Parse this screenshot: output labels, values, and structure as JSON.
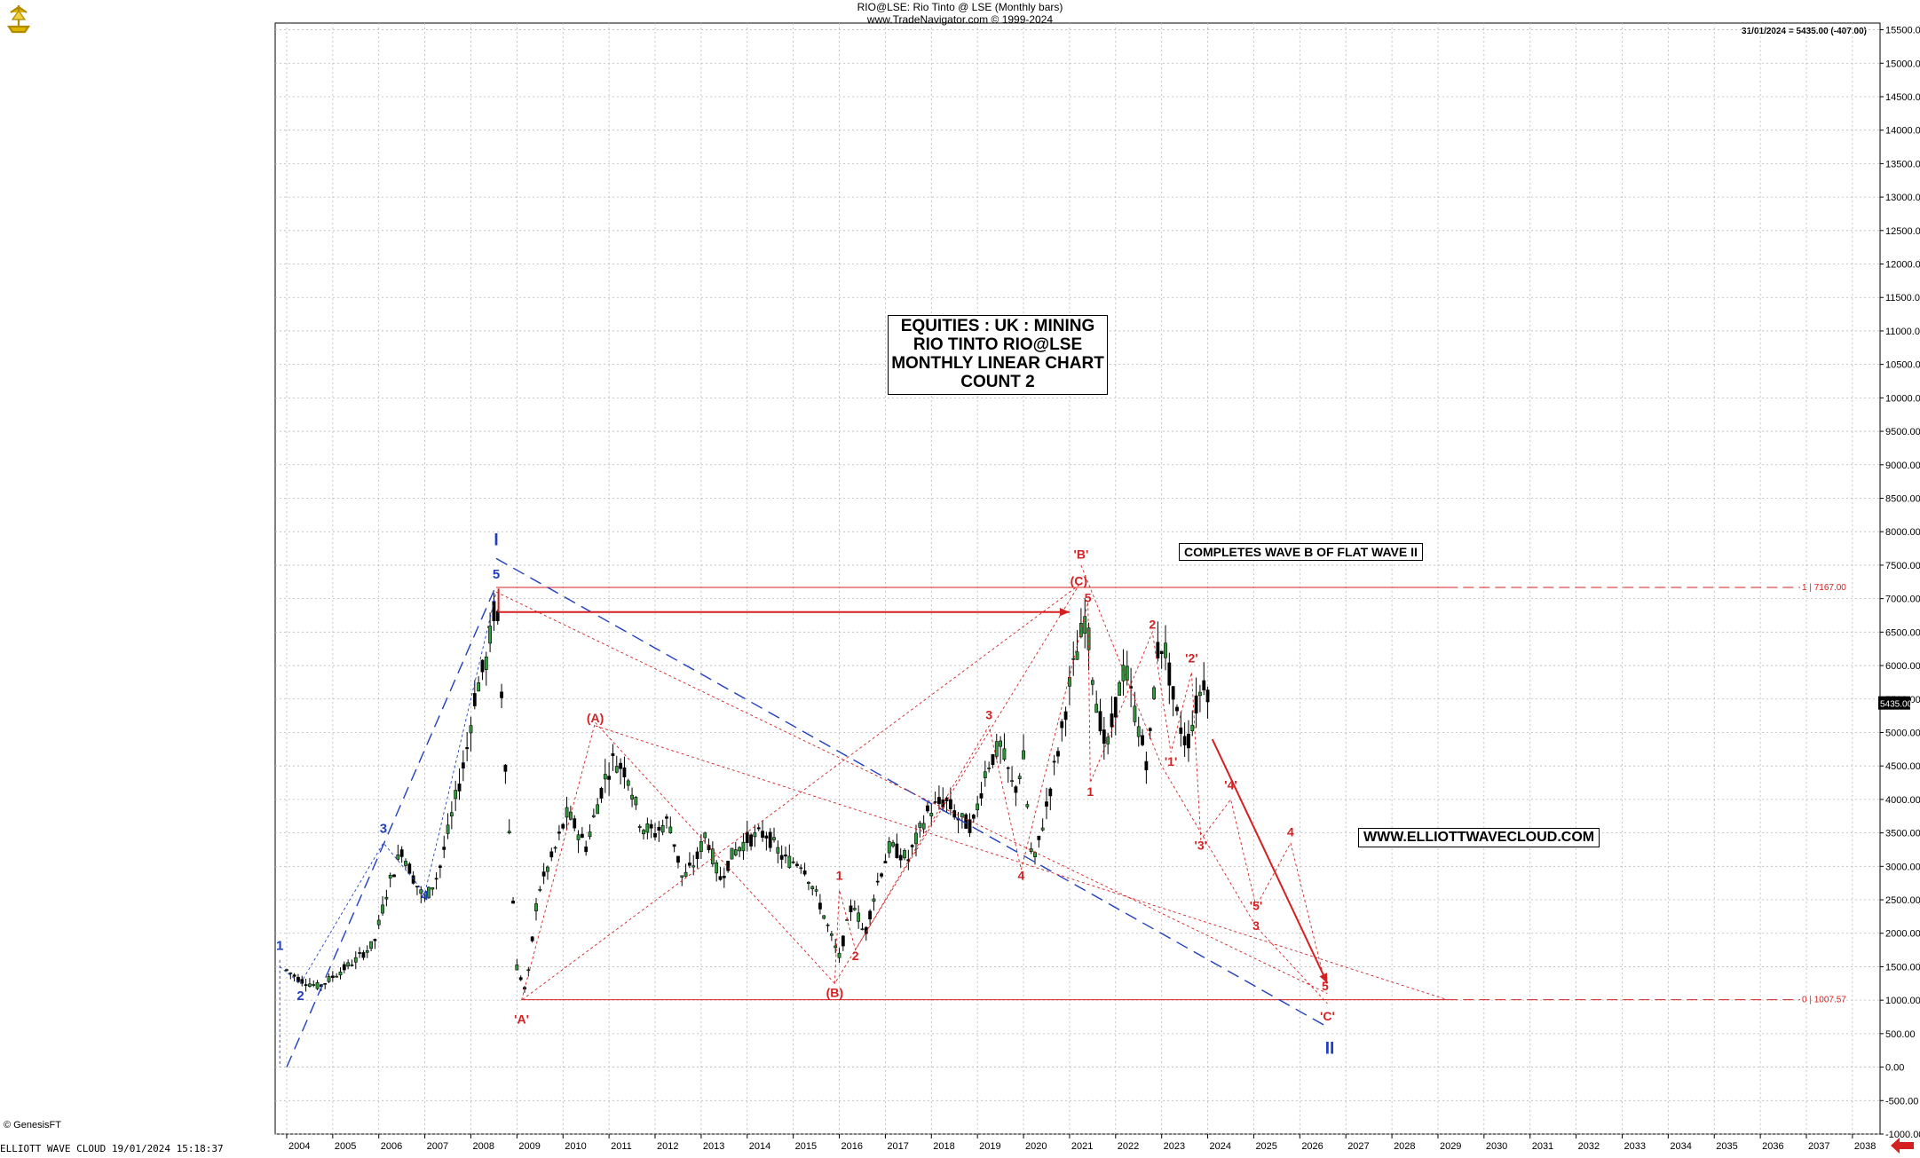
{
  "header": {
    "line1": "RIO@LSE:  Rio Tinto @ LSE  (Monthly bars)",
    "line2": "www.TradeNavigator.com © 1999-2024"
  },
  "corner_info": "31/01/2024 = 5435.00 (-407.00)",
  "copyright": "© GenesisFT",
  "footer": "ELLIOTT WAVE CLOUD   19/01/2024 15:18:37",
  "title_box": [
    "EQUITIES : UK : MINING",
    "RIO TINTO RIO@LSE",
    "MONTHLY LINEAR CHART",
    "COUNT 2"
  ],
  "note_box": "COMPLETES WAVE B OF FLAT WAVE II",
  "website_box": "WWW.ELLIOTTWAVECLOUD.COM",
  "price_tag": "5435.00",
  "colors": {
    "blue": "#1f3fbf",
    "red": "#d42020",
    "grid": "#b8b8b8",
    "bars": "#000000"
  },
  "icons": {
    "logo": "ship-logo-icon",
    "back": "red-back-arrow-icon"
  },
  "chart_data": {
    "type": "candlestick",
    "title": "RIO@LSE:  Rio Tinto @ LSE  (Monthly bars)",
    "x_ticks": [
      "2004",
      "2005",
      "2006",
      "2007",
      "2008",
      "2009",
      "2010",
      "2011",
      "2012",
      "2013",
      "2014",
      "2015",
      "2016",
      "2017",
      "2018",
      "2019",
      "2020",
      "2021",
      "2022",
      "2023",
      "2024",
      "2025",
      "2026",
      "2027",
      "2028",
      "2029",
      "2030",
      "2031",
      "2032",
      "2033",
      "2034",
      "2035",
      "2036",
      "2037",
      "2038"
    ],
    "xlim": [
      2003.75,
      2038.6
    ],
    "ylim": [
      -1000,
      15600
    ],
    "y_ticks": [
      -1000,
      -500,
      0,
      500,
      1000,
      1500,
      2000,
      2500,
      3000,
      3500,
      4000,
      4500,
      5000,
      5500,
      6000,
      6500,
      7000,
      7500,
      8000,
      8500,
      9000,
      9500,
      10000,
      10500,
      11000,
      11500,
      12000,
      12500,
      13000,
      13500,
      14000,
      14500,
      15000,
      15500
    ],
    "y_tick_format": "0.00",
    "grid": true,
    "price_path": [
      [
        2004.0,
        1450
      ],
      [
        2004.3,
        1300
      ],
      [
        2004.7,
        1200
      ],
      [
        2005.0,
        1350
      ],
      [
        2005.5,
        1600
      ],
      [
        2005.9,
        1850
      ],
      [
        2006.2,
        2700
      ],
      [
        2006.5,
        3250
      ],
      [
        2006.8,
        2750
      ],
      [
        2007.0,
        2500
      ],
      [
        2007.3,
        2900
      ],
      [
        2007.6,
        3800
      ],
      [
        2007.9,
        4700
      ],
      [
        2008.1,
        5600
      ],
      [
        2008.35,
        6100
      ],
      [
        2008.55,
        7050
      ],
      [
        2008.7,
        5200
      ],
      [
        2008.85,
        3300
      ],
      [
        2009.0,
        1500
      ],
      [
        2009.2,
        1100
      ],
      [
        2009.45,
        2600
      ],
      [
        2009.8,
        3200
      ],
      [
        2010.1,
        3800
      ],
      [
        2010.5,
        3300
      ],
      [
        2010.9,
        4300
      ],
      [
        2011.1,
        4600
      ],
      [
        2011.4,
        4400
      ],
      [
        2011.7,
        3600
      ],
      [
        2012.0,
        3500
      ],
      [
        2012.3,
        3700
      ],
      [
        2012.6,
        2800
      ],
      [
        2012.9,
        3100
      ],
      [
        2013.1,
        3500
      ],
      [
        2013.4,
        2800
      ],
      [
        2013.7,
        3200
      ],
      [
        2014.0,
        3400
      ],
      [
        2014.4,
        3500
      ],
      [
        2014.8,
        3100
      ],
      [
        2015.2,
        3050
      ],
      [
        2015.6,
        2400
      ],
      [
        2015.9,
        1800
      ],
      [
        2016.0,
        1650
      ],
      [
        2016.3,
        2500
      ],
      [
        2016.55,
        1950
      ],
      [
        2016.8,
        2700
      ],
      [
        2017.1,
        3300
      ],
      [
        2017.5,
        3100
      ],
      [
        2017.9,
        3800
      ],
      [
        2018.3,
        4000
      ],
      [
        2018.6,
        3700
      ],
      [
        2018.9,
        3600
      ],
      [
        2019.2,
        4500
      ],
      [
        2019.5,
        4800
      ],
      [
        2019.8,
        4100
      ],
      [
        2020.0,
        4600
      ],
      [
        2020.2,
        2950
      ],
      [
        2020.5,
        3900
      ],
      [
        2020.8,
        4900
      ],
      [
        2021.0,
        5700
      ],
      [
        2021.2,
        6300
      ],
      [
        2021.35,
        6750
      ],
      [
        2021.55,
        5600
      ],
      [
        2021.8,
        4700
      ],
      [
        2022.0,
        5400
      ],
      [
        2022.2,
        6000
      ],
      [
        2022.45,
        5200
      ],
      [
        2022.7,
        4500
      ],
      [
        2022.9,
        6200
      ],
      [
        2023.05,
        6350
      ],
      [
        2023.3,
        5300
      ],
      [
        2023.55,
        4800
      ],
      [
        2023.75,
        5400
      ],
      [
        2023.95,
        5850
      ],
      [
        2024.05,
        5435
      ]
    ],
    "annotations_blue": [
      {
        "text": "I",
        "x": 2008.55,
        "y": 7800
      },
      {
        "text": "5",
        "x": 2008.55,
        "y": 7300
      },
      {
        "text": "1",
        "x": 2003.85,
        "y": 1750
      },
      {
        "text": "2",
        "x": 2004.3,
        "y": 1000
      },
      {
        "text": "3",
        "x": 2006.1,
        "y": 3500
      },
      {
        "text": "4",
        "x": 2007.0,
        "y": 2500
      },
      {
        "text": "II",
        "x": 2026.65,
        "y": 200
      }
    ],
    "annotations_red": [
      {
        "text": "'B'",
        "x": 2021.25,
        "y": 7600
      },
      {
        "text": "(C)",
        "x": 2021.2,
        "y": 7200
      },
      {
        "text": "5",
        "x": 2021.4,
        "y": 6950
      },
      {
        "text": "(A)",
        "x": 2010.7,
        "y": 5150
      },
      {
        "text": "(B)",
        "x": 2015.9,
        "y": 1050
      },
      {
        "text": "'A'",
        "x": 2009.1,
        "y": 650
      },
      {
        "text": "1",
        "x": 2016.0,
        "y": 2800
      },
      {
        "text": "2",
        "x": 2016.35,
        "y": 1600
      },
      {
        "text": "3",
        "x": 2019.25,
        "y": 5200
      },
      {
        "text": "4",
        "x": 2019.95,
        "y": 2800
      },
      {
        "text": "1",
        "x": 2021.45,
        "y": 4050
      },
      {
        "text": "2",
        "x": 2022.8,
        "y": 6550
      },
      {
        "text": "'2'",
        "x": 2023.65,
        "y": 6050
      },
      {
        "text": "'1'",
        "x": 2023.2,
        "y": 4500
      },
      {
        "text": "'3'",
        "x": 2023.85,
        "y": 3250
      },
      {
        "text": "'4'",
        "x": 2024.5,
        "y": 4150
      },
      {
        "text": "'5'",
        "x": 2025.05,
        "y": 2350
      },
      {
        "text": "3",
        "x": 2025.05,
        "y": 2050
      },
      {
        "text": "4",
        "x": 2025.8,
        "y": 3450
      },
      {
        "text": "5",
        "x": 2026.55,
        "y": 1150
      },
      {
        "text": "'C'",
        "x": 2026.6,
        "y": 700
      }
    ],
    "level_lines": [
      {
        "label": "1 | 7167.00",
        "value": 7167.0
      },
      {
        "label": "0 | 1007.57",
        "value": 1007.57
      }
    ]
  }
}
